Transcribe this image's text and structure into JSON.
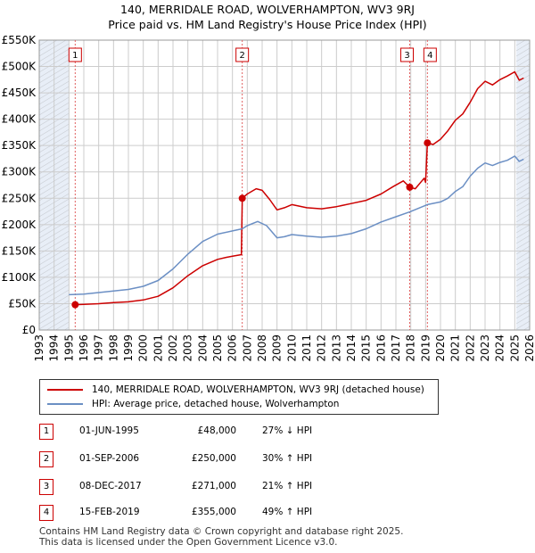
{
  "title_line1": "140, MERRIDALE ROAD, WOLVERHAMPTON, WV3 9RJ",
  "title_line2": "Price paid vs. HM Land Registry's House Price Index (HPI)",
  "colors": {
    "property": "#cc0000",
    "hpi": "#6b8fc4",
    "grid": "#cccccc",
    "shade": "#e8eef7"
  },
  "legend": {
    "property_label": "140, MERRIDALE ROAD, WOLVERHAMPTON, WV3 9RJ (detached house)",
    "hpi_label": "HPI: Average price, detached house, Wolverhampton"
  },
  "transactions": [
    {
      "num": "1",
      "date": "01-JUN-1995",
      "price": "£48,000",
      "hpi": "27% ↓ HPI"
    },
    {
      "num": "2",
      "date": "01-SEP-2006",
      "price": "£250,000",
      "hpi": "30% ↑ HPI"
    },
    {
      "num": "3",
      "date": "08-DEC-2017",
      "price": "£271,000",
      "hpi": "21% ↑ HPI"
    },
    {
      "num": "4",
      "date": "15-FEB-2019",
      "price": "£355,000",
      "hpi": "49% ↑ HPI"
    }
  ],
  "footer_line1": "Contains HM Land Registry data © Crown copyright and database right 2025.",
  "footer_line2": "This data is licensed under the Open Government Licence v3.0.",
  "chart_data": {
    "type": "line",
    "xlim": [
      1993,
      2026
    ],
    "ylim": [
      0,
      550000
    ],
    "x_ticks": [
      "1993",
      "1994",
      "1995",
      "1996",
      "1997",
      "1998",
      "1999",
      "2000",
      "2001",
      "2002",
      "2003",
      "2004",
      "2005",
      "2006",
      "2007",
      "2008",
      "2009",
      "2010",
      "2011",
      "2012",
      "2013",
      "2014",
      "2015",
      "2016",
      "2017",
      "2018",
      "2019",
      "2020",
      "2021",
      "2022",
      "2023",
      "2024",
      "2025",
      "2026"
    ],
    "y_ticks": [
      {
        "value": 0,
        "label": "£0"
      },
      {
        "value": 50000,
        "label": "£50K"
      },
      {
        "value": 100000,
        "label": "£100K"
      },
      {
        "value": 150000,
        "label": "£150K"
      },
      {
        "value": 200000,
        "label": "£200K"
      },
      {
        "value": 250000,
        "label": "£250K"
      },
      {
        "value": 300000,
        "label": "£300K"
      },
      {
        "value": 350000,
        "label": "£350K"
      },
      {
        "value": 400000,
        "label": "£400K"
      },
      {
        "value": 450000,
        "label": "£450K"
      },
      {
        "value": 500000,
        "label": "£500K"
      },
      {
        "value": 550000,
        "label": "£550K"
      }
    ],
    "shaded_ranges": [
      [
        1993,
        1995.0
      ],
      [
        2025.1,
        2026
      ]
    ],
    "series": [
      {
        "name": "property",
        "points": [
          [
            1995.42,
            48000
          ],
          [
            1996.0,
            48500
          ],
          [
            1997.0,
            50000
          ],
          [
            1998.0,
            52000
          ],
          [
            1999.0,
            53500
          ],
          [
            2000.0,
            57000
          ],
          [
            2001.0,
            64000
          ],
          [
            2002.0,
            80000
          ],
          [
            2003.0,
            103000
          ],
          [
            2004.0,
            122000
          ],
          [
            2005.0,
            134000
          ],
          [
            2005.6,
            138000
          ],
          [
            2006.0,
            140000
          ],
          [
            2006.6,
            143000
          ],
          [
            2006.66,
            250000
          ],
          [
            2007.0,
            258000
          ],
          [
            2007.6,
            268000
          ],
          [
            2008.0,
            265000
          ],
          [
            2008.5,
            248000
          ],
          [
            2009.0,
            228000
          ],
          [
            2009.5,
            232000
          ],
          [
            2010.0,
            238000
          ],
          [
            2011.0,
            232000
          ],
          [
            2012.0,
            230000
          ],
          [
            2013.0,
            234000
          ],
          [
            2014.0,
            240000
          ],
          [
            2015.0,
            246000
          ],
          [
            2016.0,
            258000
          ],
          [
            2016.8,
            272000
          ],
          [
            2017.5,
            283000
          ],
          [
            2017.93,
            271000
          ],
          [
            2018.3,
            268000
          ],
          [
            2018.9,
            288000
          ],
          [
            2019.0,
            280000
          ],
          [
            2019.12,
            355000
          ],
          [
            2019.5,
            352000
          ],
          [
            2020.0,
            362000
          ],
          [
            2020.5,
            378000
          ],
          [
            2021.0,
            398000
          ],
          [
            2021.5,
            410000
          ],
          [
            2022.0,
            432000
          ],
          [
            2022.5,
            458000
          ],
          [
            2023.0,
            472000
          ],
          [
            2023.5,
            465000
          ],
          [
            2024.0,
            475000
          ],
          [
            2024.5,
            482000
          ],
          [
            2025.0,
            490000
          ],
          [
            2025.3,
            474000
          ],
          [
            2025.6,
            478000
          ]
        ]
      },
      {
        "name": "hpi",
        "points": [
          [
            1995.0,
            67000
          ],
          [
            1996.0,
            68000
          ],
          [
            1997.0,
            71000
          ],
          [
            1998.0,
            74000
          ],
          [
            1999.0,
            77000
          ],
          [
            2000.0,
            83000
          ],
          [
            2001.0,
            94000
          ],
          [
            2002.0,
            116000
          ],
          [
            2003.0,
            144000
          ],
          [
            2004.0,
            168000
          ],
          [
            2005.0,
            182000
          ],
          [
            2006.0,
            188000
          ],
          [
            2006.66,
            192000
          ],
          [
            2007.0,
            198000
          ],
          [
            2007.7,
            206000
          ],
          [
            2008.3,
            198000
          ],
          [
            2009.0,
            175000
          ],
          [
            2009.5,
            177000
          ],
          [
            2010.0,
            181000
          ],
          [
            2011.0,
            178000
          ],
          [
            2012.0,
            176000
          ],
          [
            2013.0,
            178000
          ],
          [
            2014.0,
            183000
          ],
          [
            2015.0,
            192000
          ],
          [
            2016.0,
            205000
          ],
          [
            2017.0,
            215000
          ],
          [
            2017.93,
            224000
          ],
          [
            2019.12,
            238000
          ],
          [
            2020.0,
            243000
          ],
          [
            2020.5,
            250000
          ],
          [
            2021.0,
            263000
          ],
          [
            2021.5,
            272000
          ],
          [
            2022.0,
            292000
          ],
          [
            2022.5,
            307000
          ],
          [
            2023.0,
            317000
          ],
          [
            2023.5,
            312000
          ],
          [
            2024.0,
            318000
          ],
          [
            2024.5,
            322000
          ],
          [
            2025.0,
            330000
          ],
          [
            2025.3,
            320000
          ],
          [
            2025.6,
            324000
          ]
        ]
      }
    ],
    "sale_markers": [
      {
        "label": "1",
        "x": 1995.42,
        "y": 48000
      },
      {
        "label": "2",
        "x": 2006.66,
        "y": 250000
      },
      {
        "label": "3",
        "x": 2017.93,
        "y": 271000
      },
      {
        "label": "4",
        "x": 2019.12,
        "y": 355000
      }
    ]
  }
}
